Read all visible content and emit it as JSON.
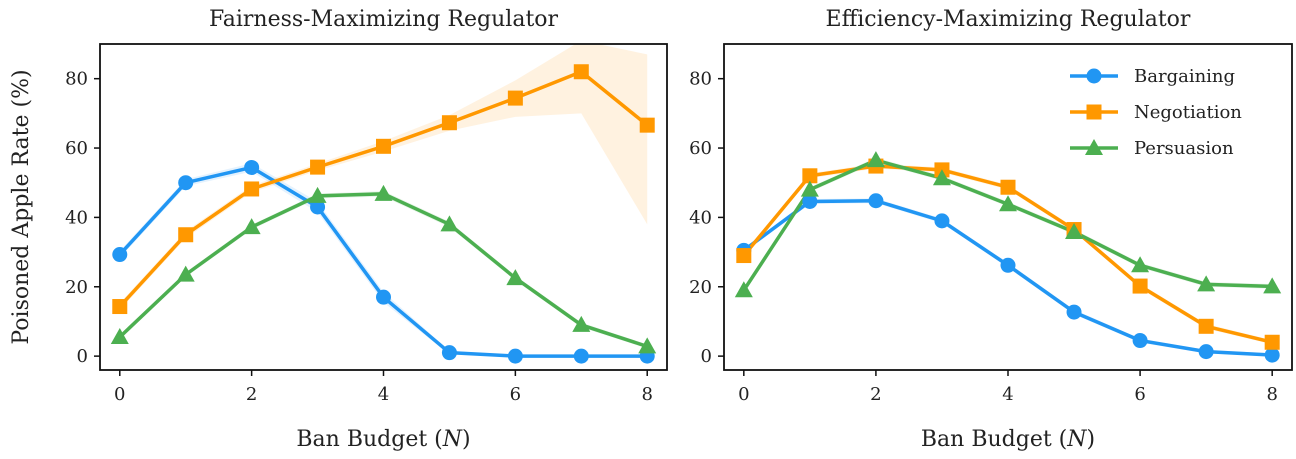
{
  "chart_data": [
    {
      "type": "line",
      "title": "Fairness-Maximizing Regulator",
      "xlabel_text": "Ban Budget (",
      "xlabel_var": "N",
      "xlabel_close": ")",
      "ylabel": "Poisoned Apple Rate (%)",
      "xlim": [
        -0.3,
        8.3
      ],
      "ylim": [
        -4,
        90
      ],
      "xticks": [
        0,
        2,
        4,
        6,
        8
      ],
      "yticks": [
        0,
        20,
        40,
        60,
        80
      ],
      "legend": "none",
      "x": [
        0,
        1,
        2,
        3,
        4,
        5,
        6,
        7,
        8
      ],
      "series": [
        {
          "name": "Bargaining",
          "color": "#2196f3",
          "marker": "circle",
          "values": [
            29.3,
            50.0,
            54.4,
            43.0,
            17.0,
            1.0,
            0.0,
            0.0,
            0.0
          ],
          "band_low": [
            28.3,
            49.0,
            53.2,
            41.5,
            15.5,
            0.5,
            0.0,
            0.0,
            0.0
          ],
          "band_high": [
            30.3,
            51.0,
            55.6,
            44.5,
            18.5,
            1.5,
            0.3,
            0.3,
            0.3
          ]
        },
        {
          "name": "Negotiation",
          "color": "#ff9800",
          "marker": "square",
          "values": [
            14.3,
            35.0,
            48.2,
            54.5,
            60.5,
            67.3,
            74.4,
            82.0,
            66.6
          ],
          "band_low": [
            13.3,
            34.0,
            47.2,
            53.5,
            59.0,
            65.0,
            69.0,
            70.0,
            38.0
          ],
          "band_high": [
            15.3,
            36.0,
            49.2,
            55.5,
            62.0,
            69.5,
            79.5,
            91.0,
            87.0
          ]
        },
        {
          "name": "Persuasion",
          "color": "#4caf50",
          "marker": "triangle",
          "values": [
            5.5,
            23.5,
            37.2,
            46.2,
            46.8,
            38.0,
            22.5,
            9.0,
            2.8
          ],
          "band_low": [
            4.8,
            22.8,
            36.5,
            45.5,
            46.0,
            37.2,
            21.8,
            8.3,
            2.2
          ],
          "band_high": [
            6.2,
            24.2,
            37.9,
            46.9,
            47.6,
            38.8,
            23.2,
            9.7,
            3.4
          ]
        }
      ]
    },
    {
      "type": "line",
      "title": "Efficiency-Maximizing Regulator",
      "xlabel_text": "Ban Budget (",
      "xlabel_var": "N",
      "xlabel_close": ")",
      "ylabel": "",
      "xlim": [
        -0.3,
        8.3
      ],
      "ylim": [
        -4,
        90
      ],
      "xticks": [
        0,
        2,
        4,
        6,
        8
      ],
      "yticks": [
        0,
        20,
        40,
        60,
        80
      ],
      "legend": "top-right",
      "x": [
        0,
        1,
        2,
        3,
        4,
        5,
        6,
        7,
        8
      ],
      "series": [
        {
          "name": "Bargaining",
          "color": "#2196f3",
          "marker": "circle",
          "values": [
            30.5,
            44.6,
            44.8,
            39.0,
            26.2,
            12.7,
            4.5,
            1.3,
            0.3
          ],
          "band_low": [
            29.8,
            43.9,
            44.1,
            38.3,
            25.5,
            12.0,
            3.9,
            0.8,
            0.0
          ],
          "band_high": [
            31.2,
            45.3,
            45.5,
            39.7,
            26.9,
            13.4,
            5.1,
            1.8,
            0.8
          ]
        },
        {
          "name": "Negotiation",
          "color": "#ff9800",
          "marker": "square",
          "values": [
            29.0,
            52.0,
            54.8,
            53.7,
            48.7,
            36.5,
            20.2,
            8.6,
            4.0
          ],
          "band_low": [
            28.3,
            51.3,
            54.1,
            53.0,
            48.0,
            35.8,
            19.5,
            7.9,
            3.4
          ],
          "band_high": [
            29.7,
            52.7,
            55.5,
            54.4,
            49.4,
            37.2,
            20.9,
            9.3,
            4.6
          ]
        },
        {
          "name": "Persuasion",
          "color": "#4caf50",
          "marker": "triangle",
          "values": [
            19.0,
            48.0,
            56.5,
            51.3,
            43.8,
            35.8,
            26.2,
            20.7,
            20.1
          ],
          "band_low": [
            18.3,
            47.3,
            55.8,
            50.6,
            43.1,
            35.1,
            25.5,
            20.0,
            19.4
          ],
          "band_high": [
            19.7,
            48.7,
            57.2,
            52.0,
            44.5,
            36.5,
            26.9,
            21.4,
            20.8
          ]
        }
      ]
    }
  ]
}
